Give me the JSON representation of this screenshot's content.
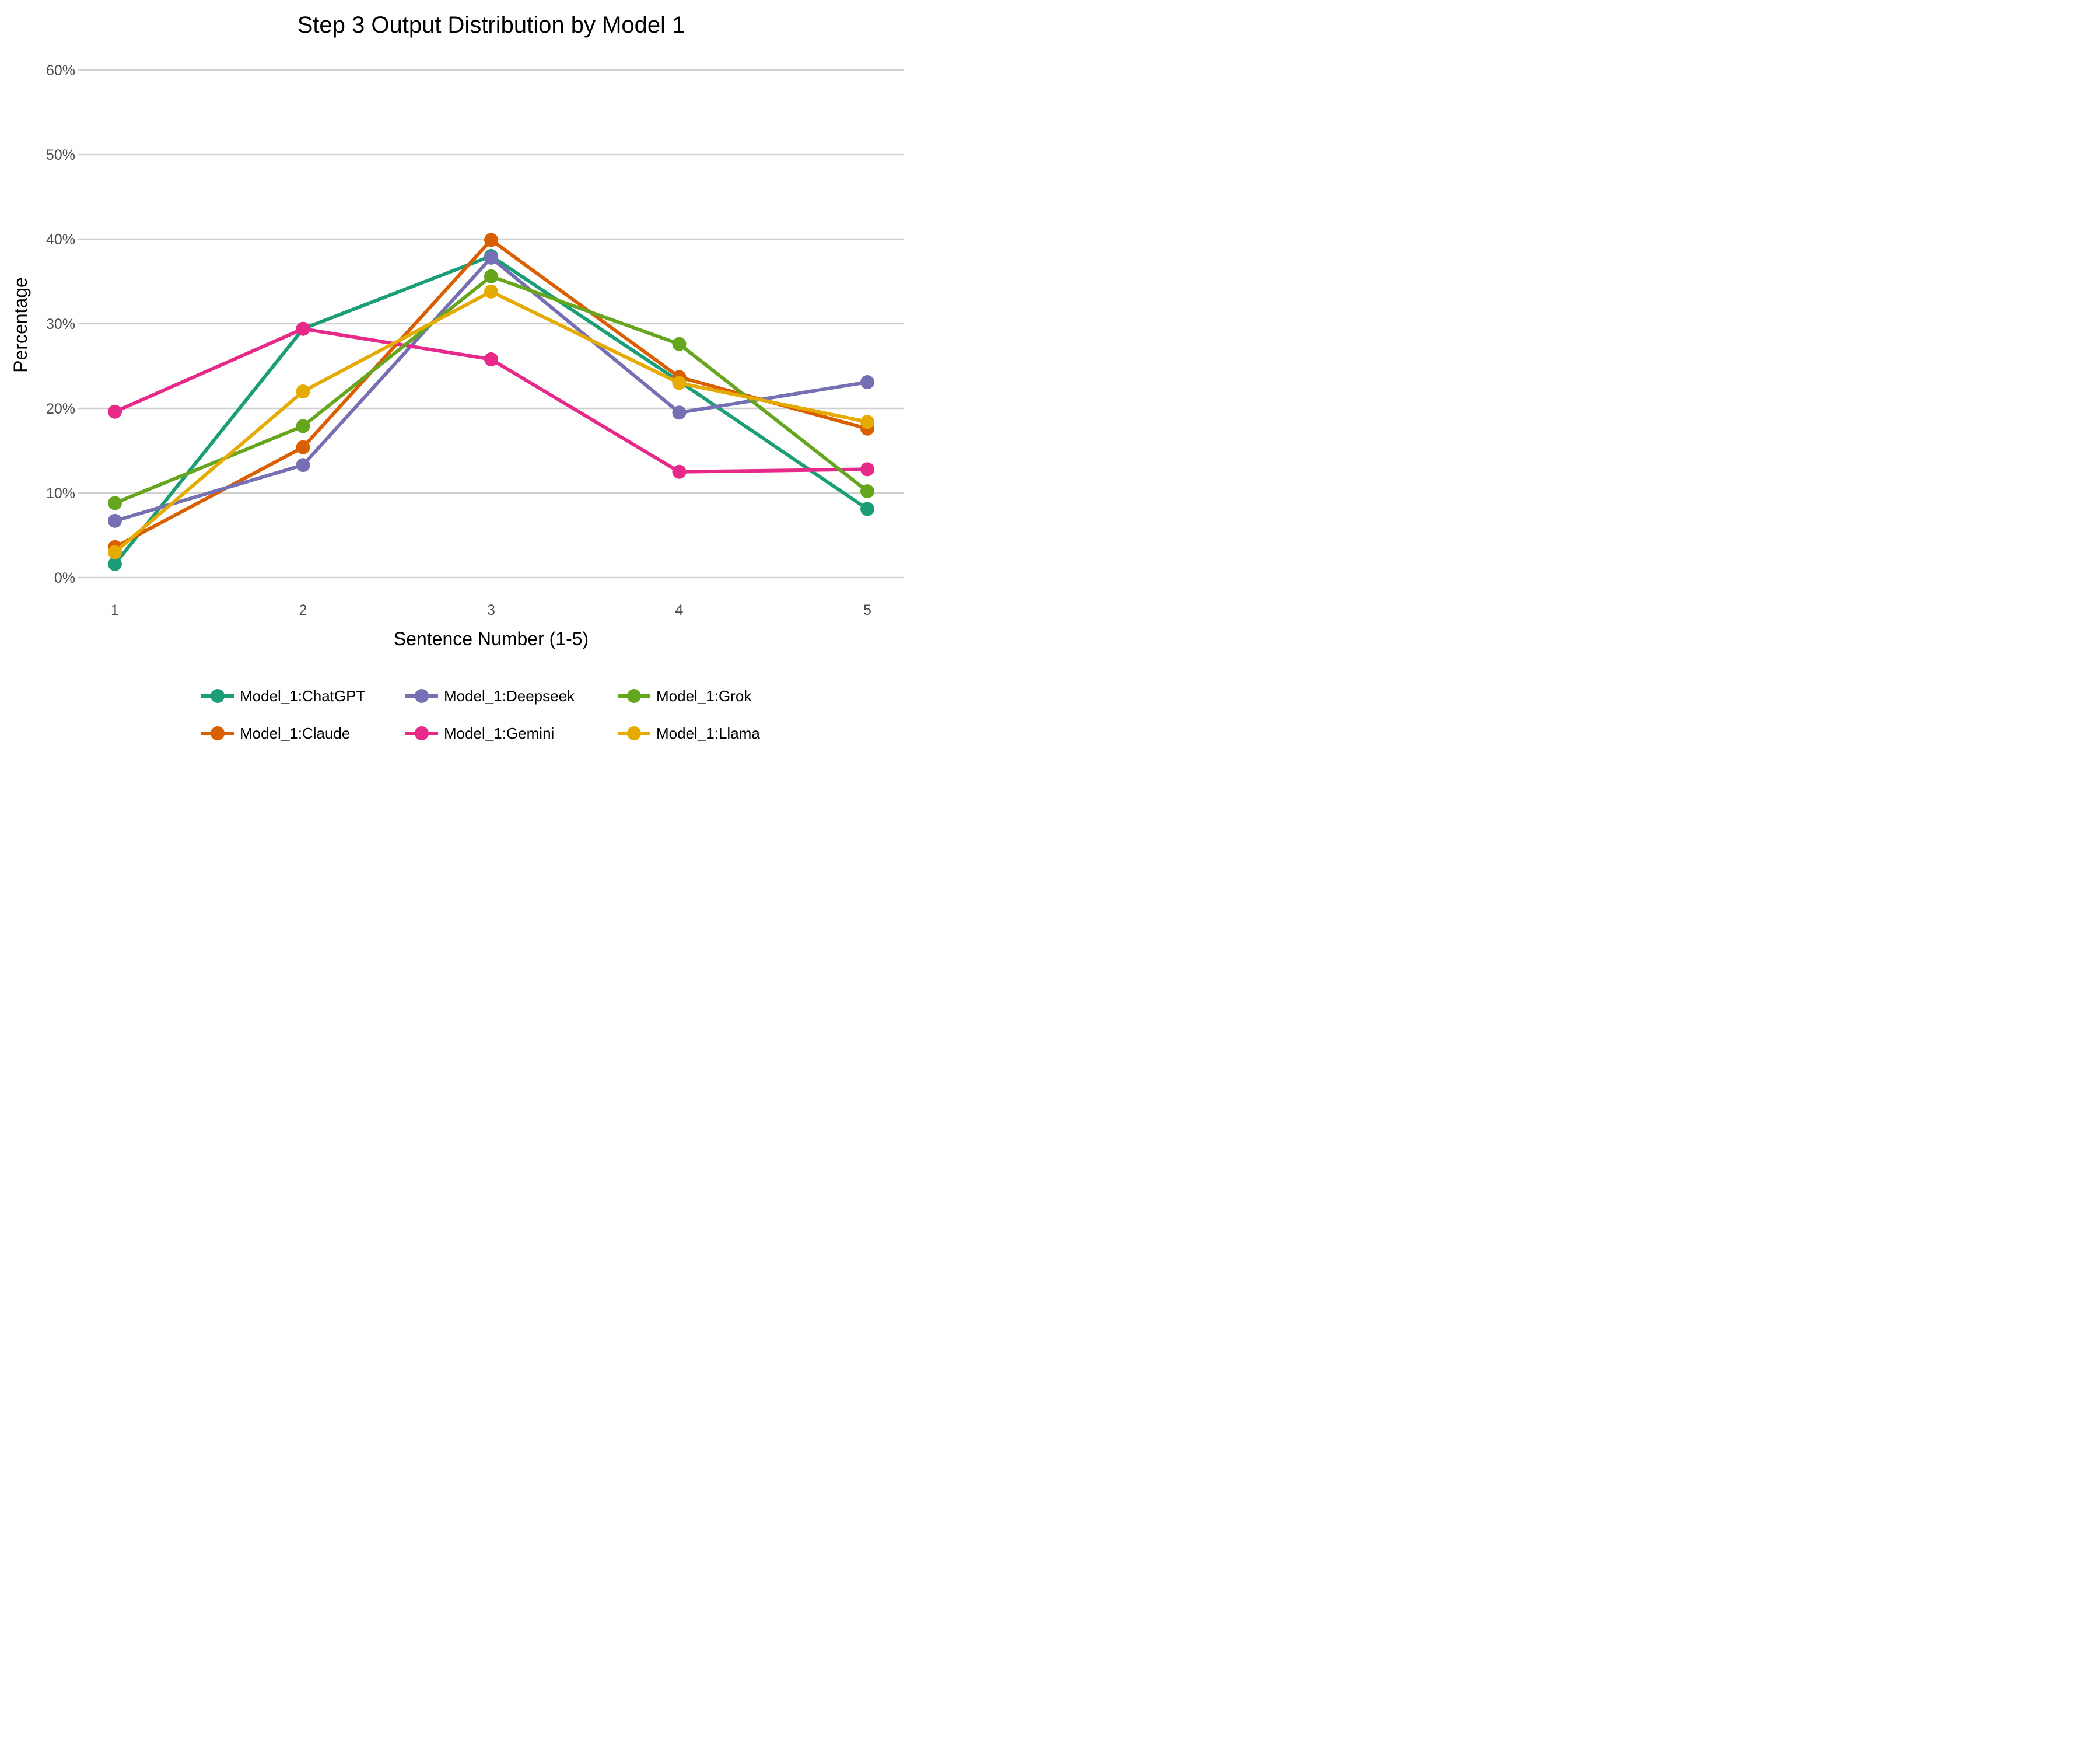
{
  "chart_data": {
    "type": "line",
    "title": "Step 3 Output Distribution by Model 1",
    "xlabel": "Sentence Number (1-5)",
    "ylabel": "Percentage",
    "x": [
      1,
      2,
      3,
      4,
      5
    ],
    "x_tick_labels": [
      "1",
      "2",
      "3",
      "4",
      "5"
    ],
    "y_ticks": [
      0,
      10,
      20,
      30,
      40,
      50,
      60
    ],
    "y_tick_labels": [
      "0%",
      "10%",
      "20%",
      "30%",
      "40%",
      "50%",
      "60%"
    ],
    "ylim": [
      0,
      60
    ],
    "grid": "horizontal",
    "legend_position": "bottom",
    "series": [
      {
        "name": "Model_1:ChatGPT",
        "color": "#1b9e77",
        "values": [
          1.6,
          29.4,
          38.0,
          23.2,
          8.1
        ]
      },
      {
        "name": "Model_1:Claude",
        "color": "#d95f02",
        "values": [
          3.6,
          15.4,
          39.9,
          23.7,
          17.6
        ]
      },
      {
        "name": "Model_1:Deepseek",
        "color": "#7570b3",
        "values": [
          6.7,
          13.3,
          37.8,
          19.5,
          23.1
        ]
      },
      {
        "name": "Model_1:Gemini",
        "color": "#e7298a",
        "values": [
          19.6,
          29.4,
          25.8,
          12.5,
          12.8
        ]
      },
      {
        "name": "Model_1:Grok",
        "color": "#66a61e",
        "values": [
          8.8,
          17.9,
          35.6,
          27.6,
          10.2
        ]
      },
      {
        "name": "Model_1:Llama",
        "color": "#e6ab02",
        "values": [
          3.0,
          22.0,
          33.8,
          23.0,
          18.4
        ]
      }
    ],
    "legend_order": [
      "Model_1:ChatGPT",
      "Model_1:Deepseek",
      "Model_1:Grok",
      "Model_1:Claude",
      "Model_1:Gemini",
      "Model_1:Llama"
    ]
  }
}
